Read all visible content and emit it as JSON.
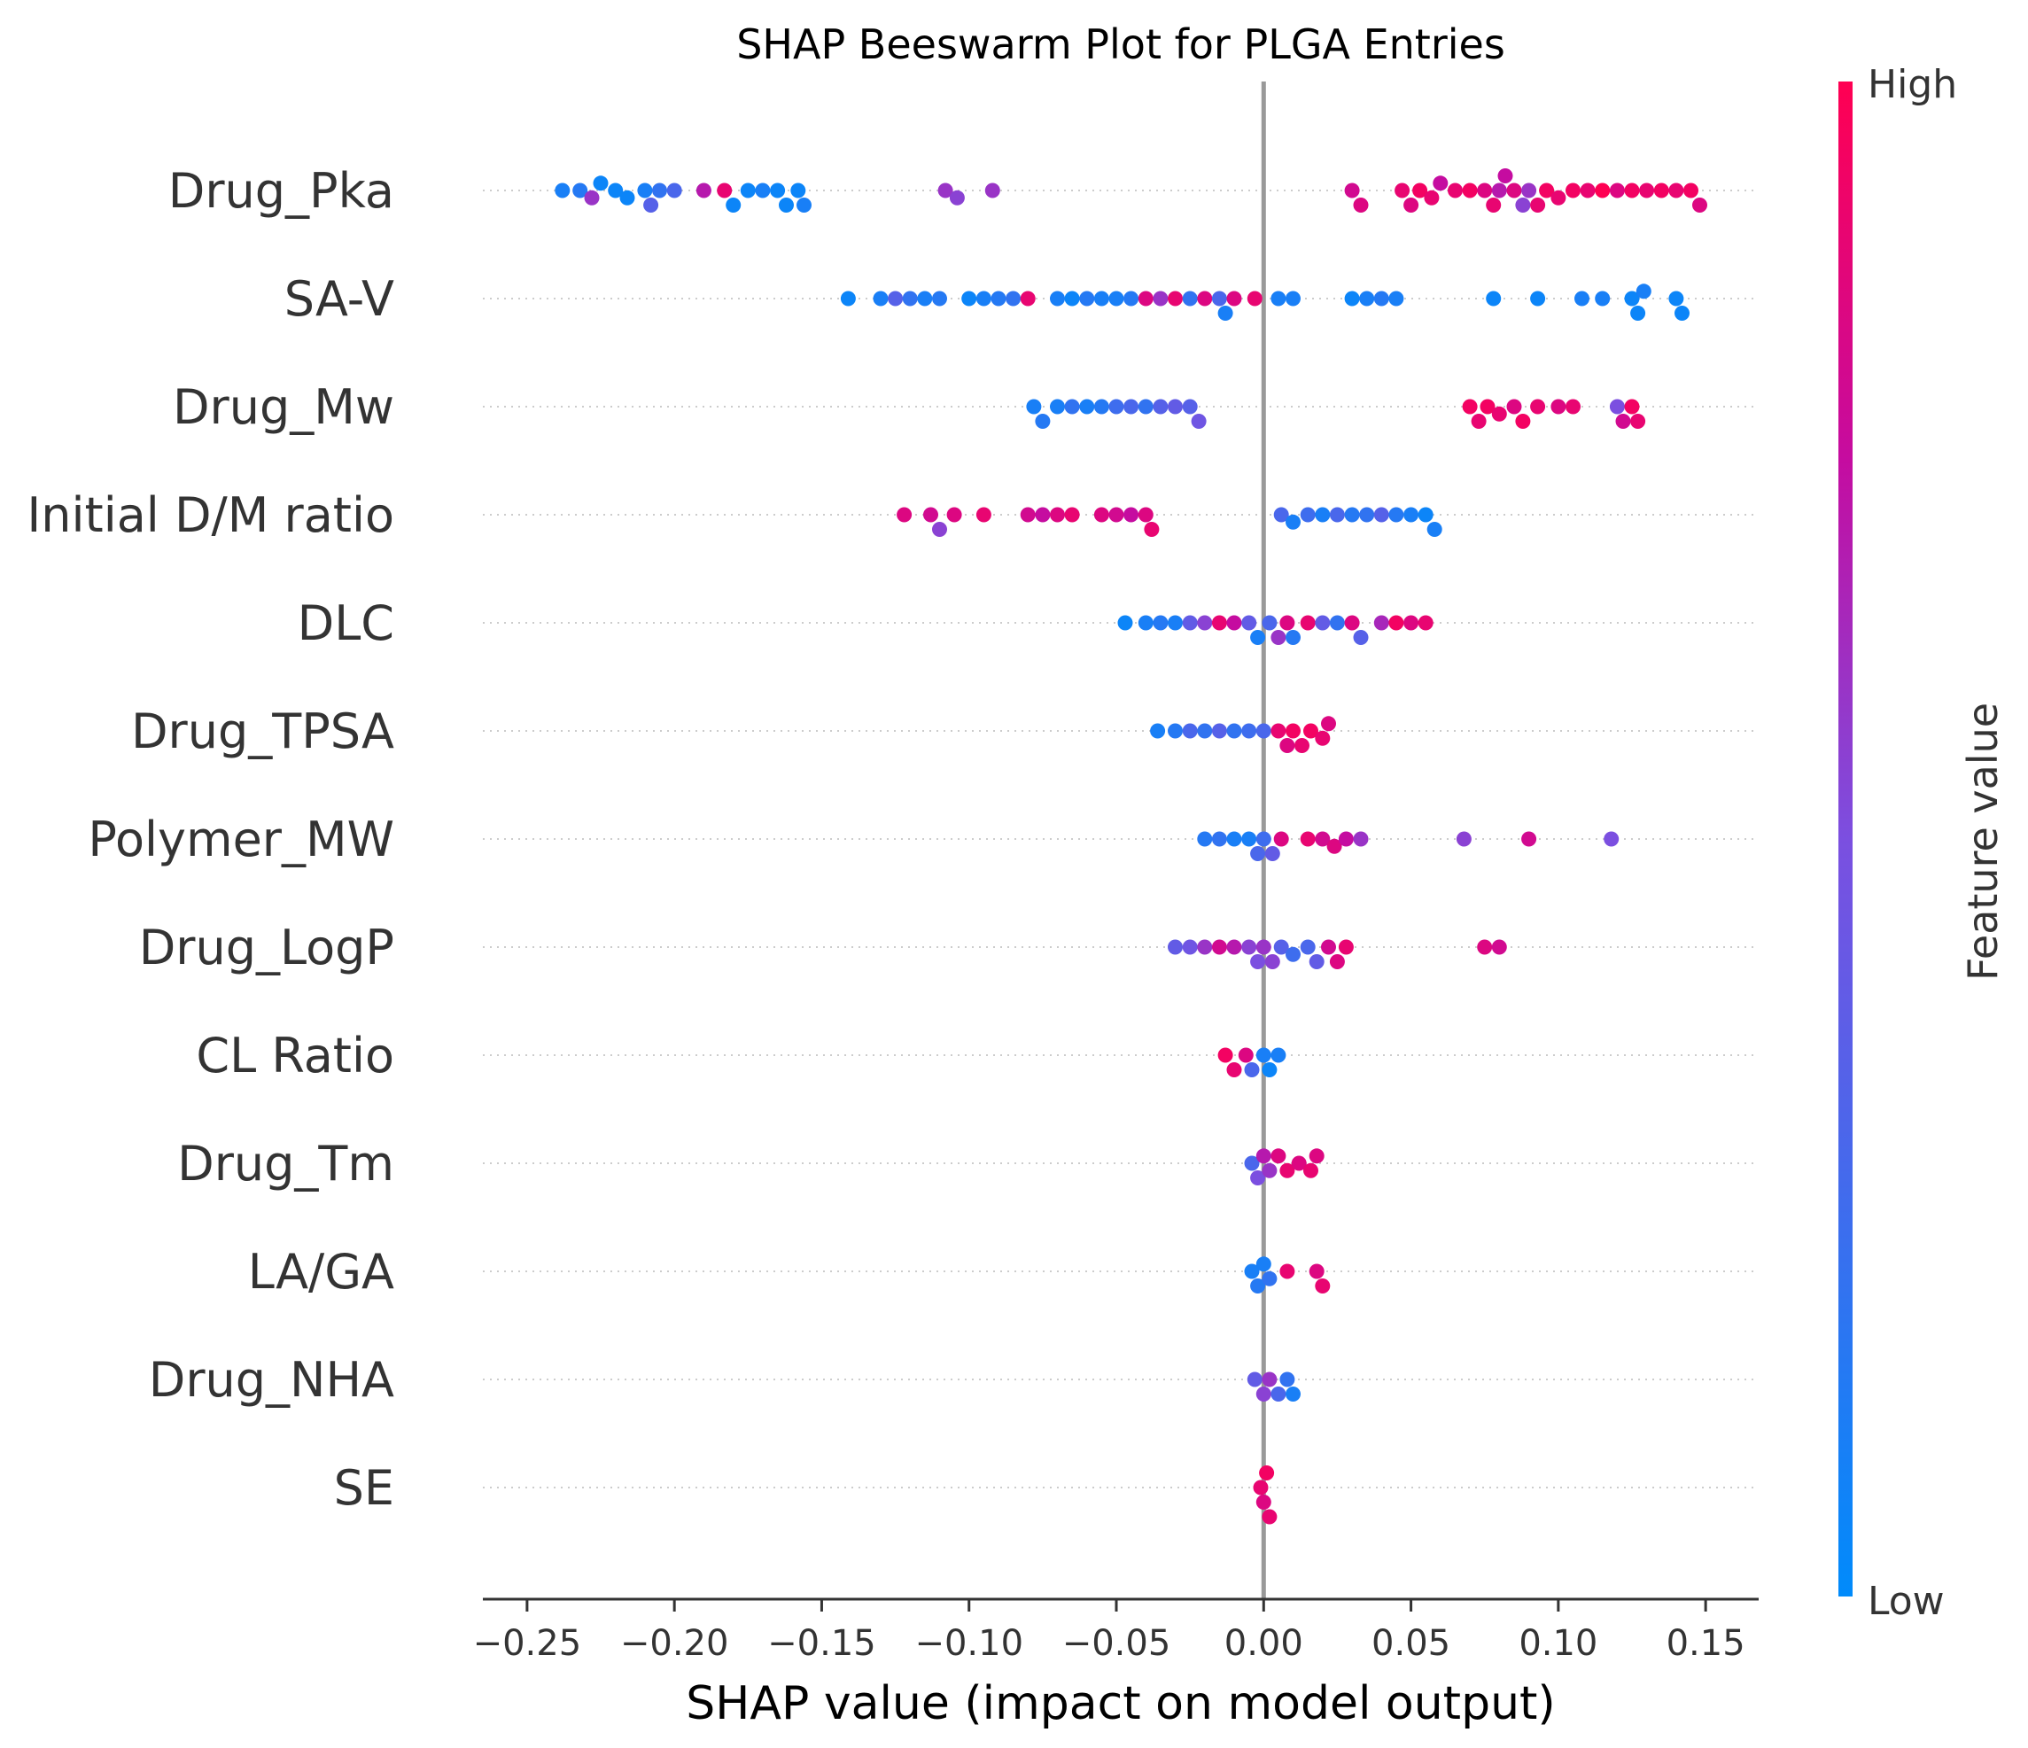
{
  "chart_data": {
    "type": "scatter",
    "subtype": "beeswarm",
    "title": "SHAP Beeswarm Plot for PLGA Entries",
    "xlabel": "SHAP value (impact on model output)",
    "ylabel": "",
    "xlim": [
      -0.265,
      0.168
    ],
    "x_ticks": [
      "−0.25",
      "−0.20",
      "−0.15",
      "−0.10",
      "−0.05",
      "0.00",
      "0.05",
      "0.10",
      "0.15"
    ],
    "x_tick_values": [
      -0.25,
      -0.2,
      -0.15,
      -0.1,
      -0.05,
      0.0,
      0.05,
      0.1,
      0.15
    ],
    "grid": "dotted horizontal guide per feature",
    "legend": "colorbar right",
    "colorbar": {
      "label": "Feature value",
      "high_label": "High",
      "low_label": "Low",
      "high_color": "#ff0052",
      "low_color": "#008bfb"
    },
    "features": [
      {
        "name": "Drug_Pka",
        "points": [
          [
            -0.238,
            0.1
          ],
          [
            -0.232,
            0.15
          ],
          [
            -0.228,
            0.6
          ],
          [
            -0.225,
            0.05
          ],
          [
            -0.22,
            0.05
          ],
          [
            -0.216,
            0.05
          ],
          [
            -0.21,
            0.1
          ],
          [
            -0.208,
            0.35
          ],
          [
            -0.205,
            0.2
          ],
          [
            -0.2,
            0.3
          ],
          [
            -0.19,
            0.7
          ],
          [
            -0.183,
            0.9
          ],
          [
            -0.18,
            0.05
          ],
          [
            -0.175,
            0.05
          ],
          [
            -0.17,
            0.1
          ],
          [
            -0.165,
            0.05
          ],
          [
            -0.162,
            0.05
          ],
          [
            -0.158,
            0.05
          ],
          [
            -0.156,
            0.1
          ],
          [
            -0.108,
            0.6
          ],
          [
            -0.104,
            0.55
          ],
          [
            -0.092,
            0.6
          ],
          [
            0.03,
            0.8
          ],
          [
            0.033,
            0.85
          ],
          [
            0.047,
            0.9
          ],
          [
            0.05,
            0.85
          ],
          [
            0.053,
            0.95
          ],
          [
            0.057,
            0.9
          ],
          [
            0.06,
            0.75
          ],
          [
            0.065,
            0.9
          ],
          [
            0.07,
            0.95
          ],
          [
            0.075,
            0.85
          ],
          [
            0.078,
            0.9
          ],
          [
            0.08,
            0.7
          ],
          [
            0.082,
            0.75
          ],
          [
            0.085,
            0.85
          ],
          [
            0.088,
            0.55
          ],
          [
            0.09,
            0.6
          ],
          [
            0.093,
            0.9
          ],
          [
            0.096,
            0.95
          ],
          [
            0.1,
            0.9
          ],
          [
            0.105,
            0.95
          ],
          [
            0.11,
            0.9
          ],
          [
            0.115,
            1.0
          ],
          [
            0.12,
            0.85
          ],
          [
            0.125,
            0.95
          ],
          [
            0.13,
            0.9
          ],
          [
            0.135,
            0.95
          ],
          [
            0.14,
            0.9
          ],
          [
            0.145,
            0.95
          ],
          [
            0.148,
            0.85
          ]
        ]
      },
      {
        "name": "SA-V",
        "points": [
          [
            -0.141,
            0.05
          ],
          [
            -0.13,
            0.1
          ],
          [
            -0.125,
            0.35
          ],
          [
            -0.12,
            0.2
          ],
          [
            -0.115,
            0.1
          ],
          [
            -0.11,
            0.15
          ],
          [
            -0.1,
            0.05
          ],
          [
            -0.095,
            0.1
          ],
          [
            -0.09,
            0.15
          ],
          [
            -0.085,
            0.2
          ],
          [
            -0.08,
            0.9
          ],
          [
            -0.07,
            0.1
          ],
          [
            -0.065,
            0.05
          ],
          [
            -0.06,
            0.15
          ],
          [
            -0.055,
            0.1
          ],
          [
            -0.05,
            0.1
          ],
          [
            -0.045,
            0.15
          ],
          [
            -0.04,
            0.85
          ],
          [
            -0.035,
            0.6
          ],
          [
            -0.03,
            0.9
          ],
          [
            -0.025,
            0.2
          ],
          [
            -0.02,
            0.85
          ],
          [
            -0.015,
            0.3
          ],
          [
            -0.013,
            0.1
          ],
          [
            -0.01,
            0.85
          ],
          [
            -0.003,
            0.9
          ],
          [
            0.005,
            0.1
          ],
          [
            0.01,
            0.1
          ],
          [
            0.03,
            0.05
          ],
          [
            0.035,
            0.1
          ],
          [
            0.04,
            0.15
          ],
          [
            0.045,
            0.1
          ],
          [
            0.078,
            0.05
          ],
          [
            0.093,
            0.05
          ],
          [
            0.108,
            0.1
          ],
          [
            0.115,
            0.1
          ],
          [
            0.125,
            0.05
          ],
          [
            0.127,
            0.05
          ],
          [
            0.129,
            0.1
          ],
          [
            0.14,
            0.05
          ],
          [
            0.142,
            0.05
          ]
        ]
      },
      {
        "name": "Drug_Mw",
        "points": [
          [
            -0.078,
            0.1
          ],
          [
            -0.075,
            0.15
          ],
          [
            -0.07,
            0.1
          ],
          [
            -0.065,
            0.2
          ],
          [
            -0.06,
            0.1
          ],
          [
            -0.055,
            0.15
          ],
          [
            -0.05,
            0.25
          ],
          [
            -0.045,
            0.3
          ],
          [
            -0.04,
            0.2
          ],
          [
            -0.035,
            0.35
          ],
          [
            -0.03,
            0.4
          ],
          [
            -0.025,
            0.35
          ],
          [
            -0.022,
            0.45
          ],
          [
            0.07,
            0.95
          ],
          [
            0.073,
            0.9
          ],
          [
            0.076,
            0.95
          ],
          [
            0.08,
            0.9
          ],
          [
            0.085,
            0.85
          ],
          [
            0.088,
            0.95
          ],
          [
            0.093,
            0.9
          ],
          [
            0.1,
            0.85
          ],
          [
            0.105,
            0.9
          ],
          [
            0.12,
            0.5
          ],
          [
            0.122,
            0.8
          ],
          [
            0.125,
            0.95
          ],
          [
            0.127,
            0.9
          ]
        ]
      },
      {
        "name": "Initial D/M ratio",
        "points": [
          [
            -0.122,
            0.85
          ],
          [
            -0.113,
            0.8
          ],
          [
            -0.11,
            0.55
          ],
          [
            -0.105,
            0.85
          ],
          [
            -0.095,
            0.9
          ],
          [
            -0.08,
            0.8
          ],
          [
            -0.075,
            0.75
          ],
          [
            -0.07,
            0.85
          ],
          [
            -0.065,
            0.9
          ],
          [
            -0.055,
            0.85
          ],
          [
            -0.05,
            0.8
          ],
          [
            -0.045,
            0.75
          ],
          [
            -0.04,
            0.85
          ],
          [
            -0.038,
            0.9
          ],
          [
            0.006,
            0.3
          ],
          [
            0.01,
            0.1
          ],
          [
            0.015,
            0.25
          ],
          [
            0.02,
            0.1
          ],
          [
            0.025,
            0.3
          ],
          [
            0.03,
            0.15
          ],
          [
            0.035,
            0.2
          ],
          [
            0.04,
            0.35
          ],
          [
            0.045,
            0.15
          ],
          [
            0.05,
            0.1
          ],
          [
            0.055,
            0.05
          ],
          [
            0.058,
            0.1
          ]
        ]
      },
      {
        "name": "DLC",
        "points": [
          [
            -0.047,
            0.05
          ],
          [
            -0.04,
            0.1
          ],
          [
            -0.035,
            0.15
          ],
          [
            -0.03,
            0.1
          ],
          [
            -0.025,
            0.4
          ],
          [
            -0.02,
            0.55
          ],
          [
            -0.015,
            0.9
          ],
          [
            -0.01,
            0.75
          ],
          [
            -0.005,
            0.4
          ],
          [
            -0.002,
            0.1
          ],
          [
            0.002,
            0.3
          ],
          [
            0.005,
            0.6
          ],
          [
            0.008,
            0.85
          ],
          [
            0.01,
            0.15
          ],
          [
            0.015,
            0.9
          ],
          [
            0.02,
            0.4
          ],
          [
            0.025,
            0.2
          ],
          [
            0.03,
            0.85
          ],
          [
            0.033,
            0.35
          ],
          [
            0.04,
            0.65
          ],
          [
            0.045,
            0.95
          ],
          [
            0.05,
            0.85
          ],
          [
            0.055,
            0.9
          ]
        ]
      },
      {
        "name": "Drug_TPSA",
        "points": [
          [
            -0.036,
            0.1
          ],
          [
            -0.03,
            0.15
          ],
          [
            -0.025,
            0.3
          ],
          [
            -0.02,
            0.2
          ],
          [
            -0.015,
            0.35
          ],
          [
            -0.01,
            0.2
          ],
          [
            -0.005,
            0.25
          ],
          [
            0.0,
            0.3
          ],
          [
            0.005,
            0.9
          ],
          [
            0.008,
            0.85
          ],
          [
            0.01,
            0.95
          ],
          [
            0.013,
            0.9
          ],
          [
            0.016,
            0.95
          ],
          [
            0.02,
            0.9
          ],
          [
            0.022,
            0.85
          ]
        ]
      },
      {
        "name": "Polymer_MW",
        "points": [
          [
            -0.02,
            0.15
          ],
          [
            -0.015,
            0.2
          ],
          [
            -0.01,
            0.1
          ],
          [
            -0.005,
            0.1
          ],
          [
            -0.002,
            0.3
          ],
          [
            0.0,
            0.25
          ],
          [
            0.003,
            0.4
          ],
          [
            0.006,
            0.85
          ],
          [
            0.015,
            0.9
          ],
          [
            0.02,
            0.8
          ],
          [
            0.024,
            0.85
          ],
          [
            0.028,
            0.75
          ],
          [
            0.033,
            0.6
          ],
          [
            0.068,
            0.55
          ],
          [
            0.09,
            0.8
          ],
          [
            0.118,
            0.5
          ]
        ]
      },
      {
        "name": "Drug_LogP",
        "points": [
          [
            -0.03,
            0.4
          ],
          [
            -0.025,
            0.45
          ],
          [
            -0.02,
            0.6
          ],
          [
            -0.015,
            0.8
          ],
          [
            -0.01,
            0.7
          ],
          [
            -0.005,
            0.55
          ],
          [
            -0.002,
            0.5
          ],
          [
            0.0,
            0.6
          ],
          [
            0.003,
            0.55
          ],
          [
            0.006,
            0.35
          ],
          [
            0.01,
            0.25
          ],
          [
            0.015,
            0.3
          ],
          [
            0.018,
            0.4
          ],
          [
            0.022,
            0.8
          ],
          [
            0.025,
            0.85
          ],
          [
            0.028,
            0.9
          ],
          [
            0.075,
            0.85
          ],
          [
            0.08,
            0.8
          ]
        ]
      },
      {
        "name": "CL Ratio",
        "points": [
          [
            -0.013,
            0.95
          ],
          [
            -0.01,
            0.9
          ],
          [
            -0.006,
            0.85
          ],
          [
            -0.004,
            0.3
          ],
          [
            0.0,
            0.1
          ],
          [
            0.002,
            0.05
          ],
          [
            0.005,
            0.1
          ]
        ]
      },
      {
        "name": "Drug_Tm",
        "points": [
          [
            -0.004,
            0.3
          ],
          [
            -0.002,
            0.5
          ],
          [
            0.0,
            0.7
          ],
          [
            0.002,
            0.6
          ],
          [
            0.005,
            0.85
          ],
          [
            0.008,
            0.9
          ],
          [
            0.012,
            0.85
          ],
          [
            0.016,
            0.9
          ],
          [
            0.018,
            0.85
          ]
        ]
      },
      {
        "name": "LA/GA",
        "points": [
          [
            -0.004,
            0.1
          ],
          [
            -0.002,
            0.15
          ],
          [
            0.0,
            0.1
          ],
          [
            0.002,
            0.2
          ],
          [
            0.008,
            0.9
          ],
          [
            0.018,
            0.85
          ],
          [
            0.02,
            0.9
          ]
        ]
      },
      {
        "name": "Drug_NHA",
        "points": [
          [
            -0.003,
            0.4
          ],
          [
            0.0,
            0.55
          ],
          [
            0.002,
            0.6
          ],
          [
            0.005,
            0.3
          ],
          [
            0.008,
            0.2
          ],
          [
            0.01,
            0.1
          ]
        ]
      },
      {
        "name": "SE",
        "points": [
          [
            -0.001,
            0.9
          ],
          [
            0.0,
            0.85
          ],
          [
            0.001,
            0.95
          ],
          [
            0.002,
            0.9
          ]
        ]
      }
    ]
  }
}
